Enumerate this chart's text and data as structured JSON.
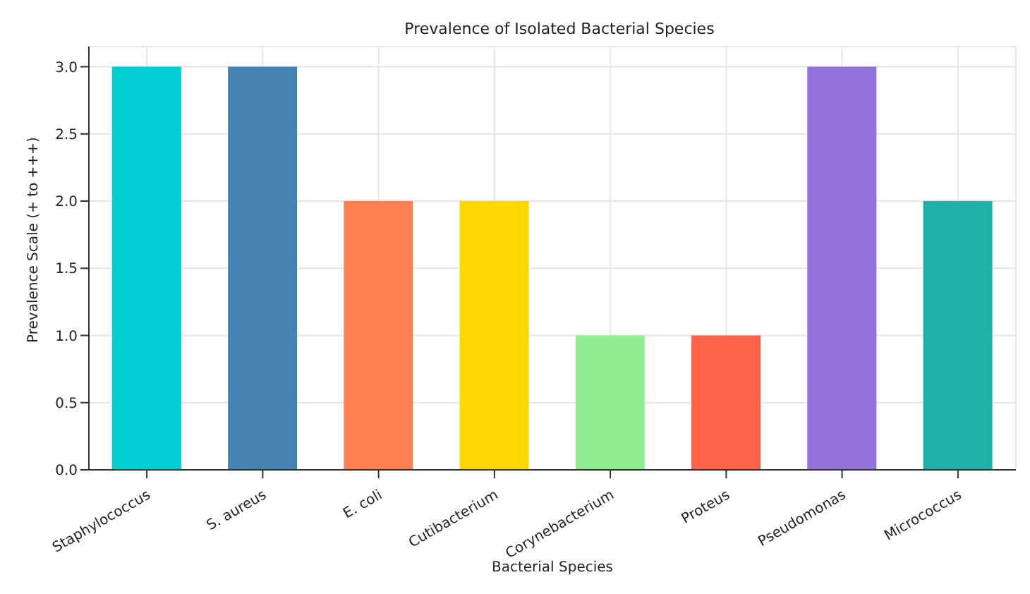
{
  "chart_data": {
    "type": "bar",
    "title": "Prevalence of Isolated Bacterial Species",
    "xlabel": "Bacterial Species",
    "ylabel": "Prevalence Scale (+ to +++)",
    "categories": [
      "Staphylococcus",
      "S. aureus",
      "E. coli",
      "Cutibacterium",
      "Corynebacterium",
      "Proteus",
      "Pseudomonas",
      "Micrococcus"
    ],
    "values": [
      3,
      3,
      2,
      2,
      1,
      1,
      3,
      2
    ],
    "colors": [
      "#00ced1",
      "#4682b4",
      "#ff7f50",
      "#ffd700",
      "#90ee90",
      "#ff6347",
      "#9370db",
      "#20b2aa"
    ],
    "ylim": [
      0,
      3.15
    ],
    "yticks": [
      {
        "value": 0,
        "label": "0.0"
      },
      0.5,
      {
        "value": 1,
        "label": "1.0"
      },
      1.5,
      {
        "value": 2,
        "label": "2.0"
      },
      2.5,
      {
        "value": 3,
        "label": "3.0"
      }
    ],
    "grid": true
  }
}
